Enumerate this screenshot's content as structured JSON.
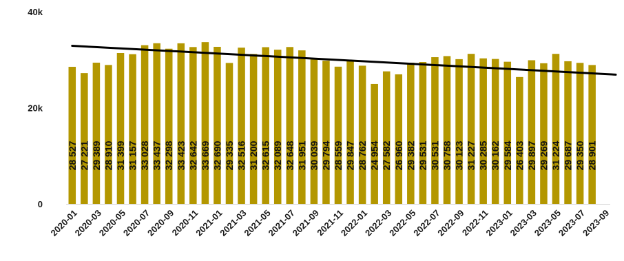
{
  "chart_data": {
    "type": "bar",
    "categories": [
      "2020-01",
      "2020-02",
      "2020-03",
      "2020-04",
      "2020-05",
      "2020-06",
      "2020-07",
      "2020-08",
      "2020-09",
      "2020-10",
      "2020-11",
      "2020-12",
      "2021-01",
      "2021-02",
      "2021-03",
      "2021-04",
      "2021-05",
      "2021-06",
      "2021-07",
      "2021-08",
      "2021-09",
      "2021-10",
      "2021-11",
      "2021-12",
      "2022-01",
      "2022-02",
      "2022-03",
      "2022-04",
      "2022-05",
      "2022-06",
      "2022-07",
      "2022-08",
      "2022-09",
      "2022-10",
      "2022-11",
      "2022-12",
      "2023-01",
      "2023-02",
      "2023-03",
      "2023-04",
      "2023-05",
      "2023-06",
      "2023-07",
      "2023-08",
      "2023-09"
    ],
    "values": [
      28527,
      27221,
      29389,
      28910,
      31399,
      31157,
      33028,
      33437,
      32298,
      33423,
      32642,
      33669,
      32690,
      29335,
      32516,
      31200,
      32615,
      32089,
      32648,
      31951,
      30039,
      29794,
      28559,
      29847,
      28762,
      24954,
      27582,
      26960,
      29382,
      29531,
      30531,
      30758,
      30123,
      31227,
      30285,
      30162,
      29584,
      26403,
      29897,
      29269,
      31224,
      29687,
      29350,
      28901,
      null
    ],
    "data_labels": [
      "28 527",
      "27 221",
      "29 389",
      "28 910",
      "31 399",
      "31 157",
      "33 028",
      "33 437",
      "32 298",
      "33 423",
      "32 642",
      "33 669",
      "32 690",
      "29 335",
      "32 516",
      "31 200",
      "32 615",
      "32 089",
      "32 648",
      "31 951",
      "30 039",
      "29 794",
      "28 559",
      "29 847",
      "28 762",
      "24 954",
      "27 582",
      "26 960",
      "29 382",
      "29 531",
      "30 531",
      "30 758",
      "30 123",
      "31 227",
      "30 285",
      "30 162",
      "29 584",
      "26 403",
      "29 897",
      "29 269",
      "31 224",
      "29 687",
      "29 350",
      "28 901",
      ""
    ],
    "x_tick_labels": [
      "2020-01",
      "2020-03",
      "2020-05",
      "2020-07",
      "2020-09",
      "2020-11",
      "2021-01",
      "2021-03",
      "2021-05",
      "2021-07",
      "2021-09",
      "2021-11",
      "2022-01",
      "2022-03",
      "2022-05",
      "2022-07",
      "2022-09",
      "2022-11",
      "2023-01",
      "2023-03",
      "2023-05",
      "2023-07",
      "2023-09"
    ],
    "y_tick_labels": [
      "0",
      "20k",
      "40k"
    ],
    "ylim": [
      0,
      40000
    ],
    "trendline": {
      "start": 32900,
      "end": 26900
    },
    "grid": false,
    "legend": "none",
    "title": "",
    "xlabel": "",
    "ylabel": "",
    "colors": {
      "bar": "#B39700",
      "trend": "#000000",
      "text": "#1a1a1a"
    }
  }
}
